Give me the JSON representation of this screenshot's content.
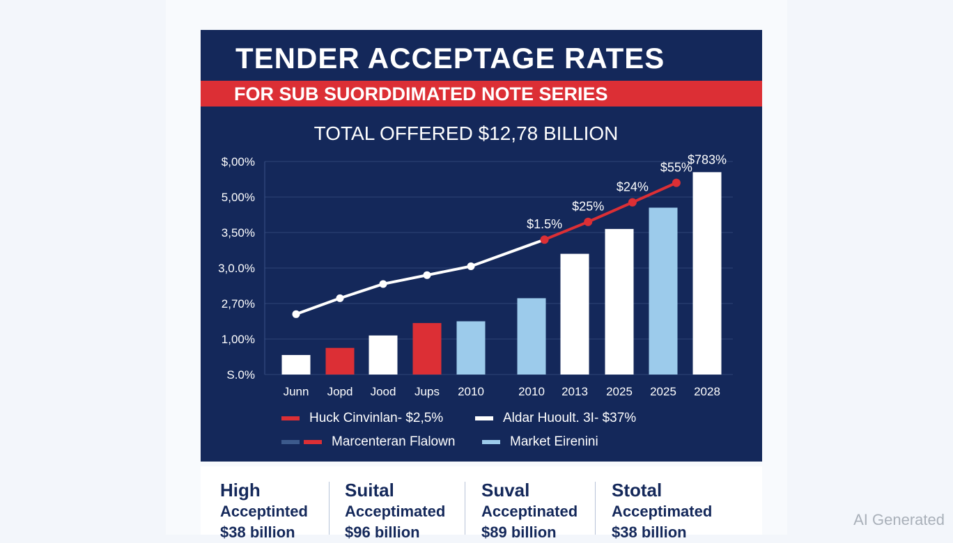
{
  "header": {
    "title": "TENDER ACCEPTAGE RATES",
    "subtitle": "FOR SUB SUORDDIMATED NOTE SERIES",
    "total_offered": "TOTAL OFFERED $12,78 BILLION"
  },
  "colors": {
    "panel": "#14285a",
    "red": "#dc2f35",
    "white": "#ffffff",
    "light_blue": "#9ccbeb"
  },
  "chart_data": {
    "type": "bar",
    "categories": [
      "Junn",
      "Jopd",
      "Jood",
      "Jups",
      "2010",
      "2010",
      "2013",
      "2025",
      "2025",
      "2028"
    ],
    "y_tick_labels": [
      "S.0%",
      "1,00%",
      "2,70%",
      "3,0.0%",
      "3,50%",
      "5,00%",
      "$,00%"
    ],
    "ylim": [
      0,
      6
    ],
    "grid": true,
    "bars": [
      {
        "value": 0.55,
        "color": "white"
      },
      {
        "value": 0.75,
        "color": "red"
      },
      {
        "value": 1.1,
        "color": "white"
      },
      {
        "value": 1.45,
        "color": "red"
      },
      {
        "value": 1.5,
        "color": "light_blue"
      },
      {
        "value": 2.15,
        "color": "light_blue"
      },
      {
        "value": 3.4,
        "color": "white"
      },
      {
        "value": 4.1,
        "color": "white"
      },
      {
        "value": 4.7,
        "color": "light_blue"
      },
      {
        "value": 5.7,
        "color": "white"
      }
    ],
    "line_white": [
      {
        "x": 0,
        "y": 1.7
      },
      {
        "x": 1,
        "y": 2.15
      },
      {
        "x": 2,
        "y": 2.55
      },
      {
        "x": 3,
        "y": 2.8
      },
      {
        "x": 4,
        "y": 3.05
      },
      {
        "x": 5.3,
        "y": 3.8
      }
    ],
    "line_red": [
      {
        "x": 5.3,
        "y": 3.8,
        "label": "$1.5%"
      },
      {
        "x": 6.3,
        "y": 4.3,
        "label": "$25%"
      },
      {
        "x": 7.3,
        "y": 4.85,
        "label": "$24%"
      },
      {
        "x": 8.3,
        "y": 5.4,
        "label": "$55%"
      }
    ],
    "top_bar_label": "$783%",
    "legend": [
      {
        "label": "Huck Cinvinlan- $2,5%",
        "color": "red",
        "position": "bottom-left"
      },
      {
        "label": "Aldar Huoult. 3I- $37%",
        "color": "white",
        "position": "bottom-right"
      },
      {
        "label": "Marcenteran Flalown",
        "color": "red",
        "position": "bottom-left"
      },
      {
        "label": "Market Eirenini",
        "color": "light_blue",
        "position": "bottom-right"
      }
    ]
  },
  "stats": [
    {
      "heading": "High",
      "subtitle": "Acceptinted",
      "value": "$38 billion"
    },
    {
      "heading": "Suital",
      "subtitle": "Acceptimated",
      "value": "$96 billion"
    },
    {
      "heading": "Suval",
      "subtitle": "Acceptinated",
      "value": "$89 billion"
    },
    {
      "heading": "Stotal",
      "subtitle": "Acceptimated",
      "value": "$38 billion"
    }
  ],
  "watermark": "AI Generated"
}
